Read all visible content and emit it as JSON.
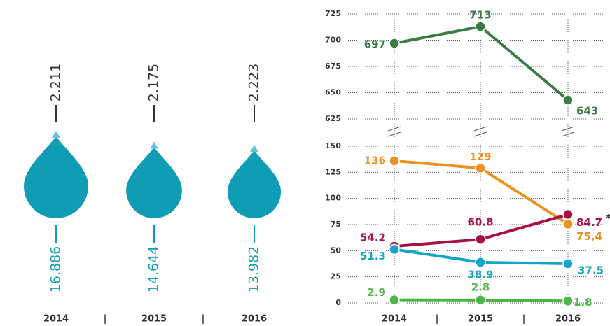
{
  "chart_data": [
    {
      "type": "drop",
      "categories": [
        "2014",
        "2015",
        "2016"
      ],
      "top_values": [
        2211,
        2175,
        2223
      ],
      "top_labels": [
        "2.211",
        "2.175",
        "2.223"
      ],
      "bottom_values": [
        16886,
        14644,
        13982
      ],
      "bottom_labels": [
        "16.886",
        "14.644",
        "13.982"
      ],
      "color": "#0f9db5",
      "tip_color": "#62c3de",
      "top_text_color": "#333333"
    },
    {
      "type": "line",
      "categories": [
        "2014",
        "2015",
        "2016"
      ],
      "ylim": [
        0,
        150
      ],
      "yticks": [
        0,
        25,
        50,
        75,
        100,
        125,
        150
      ],
      "upper_ylim": [
        625,
        725
      ],
      "upper_yticks": [
        625,
        650,
        675,
        700,
        725
      ],
      "grid": true,
      "series": [
        {
          "color": "#3a7d44",
          "axis": "upper",
          "values": [
            697,
            713,
            643
          ]
        },
        {
          "color": "#ec9222",
          "values": [
            136,
            129,
            75.4
          ],
          "value_labels": [
            "136",
            "129",
            "75,4"
          ]
        },
        {
          "color": "#a6113f",
          "values": [
            54.2,
            60.8,
            84.7
          ]
        },
        {
          "color": "#14a6c6",
          "values": [
            51.3,
            38.9,
            37.5
          ]
        },
        {
          "color": "#4db548",
          "values": [
            2.9,
            2.8,
            1.8
          ]
        }
      ],
      "annotations": [
        "*"
      ]
    }
  ]
}
